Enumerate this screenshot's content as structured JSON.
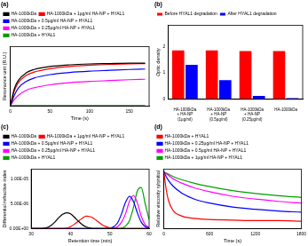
{
  "chart_data": [
    {
      "type": "line",
      "title": "(a)",
      "x_label": "Time (s)",
      "y_label": "Resonance unit (R.U.)",
      "x": [
        0,
        5,
        10,
        20,
        30,
        50,
        75,
        100,
        125,
        150,
        170
      ],
      "series": [
        {
          "name": "HA-1000kDa",
          "color": "#000000",
          "values": [
            0,
            40,
            60,
            78,
            86,
            93,
            97,
            99,
            100,
            101,
            101
          ]
        },
        {
          "name": "HA-1000kDa + 1µg/ml HA-NP + HYAL1",
          "color": "#ff0000",
          "values": [
            0,
            35,
            55,
            72,
            80,
            88,
            93,
            96,
            98,
            99,
            100
          ]
        },
        {
          "name": "HA-1000kDa + 0.5µg/ml HA-NP + HYAL1",
          "color": "#0000ff",
          "values": [
            0,
            25,
            42,
            58,
            66,
            74,
            79,
            82,
            84,
            86,
            87
          ]
        },
        {
          "name": "HA-1000kDa + 0.25µg/ml HA-NP + HYAL1",
          "color": "#ff00ff",
          "values": [
            0,
            15,
            25,
            37,
            43,
            50,
            55,
            58,
            60,
            62,
            63
          ]
        },
        {
          "name": "HA-1000kDa + HYAL1",
          "color": "#00a000",
          "values": [
            0,
            1,
            1,
            1,
            1,
            1,
            1,
            1,
            1,
            1,
            1
          ]
        }
      ],
      "xlim": [
        0,
        175
      ],
      "xticks": [
        0,
        50,
        100,
        150
      ],
      "ylim": [
        0,
        140
      ],
      "tick_labels": "x",
      "grid": false,
      "legend": "top"
    },
    {
      "type": "bar",
      "title": "(b)",
      "y_label": "Optic density",
      "categories": [
        "HA-1000kDa + HA-NP (1µg/ml)",
        "HA-1000kDa + HA-NP (0.5µg/ml)",
        "HA-1000kDa + HA-NP (0.25µg/ml)",
        "HA-1000kDa"
      ],
      "series": [
        {
          "name": "Before HYAL1 degradation",
          "color": "#ff0000",
          "values": [
            1.85,
            1.85,
            1.82,
            1.82
          ]
        },
        {
          "name": "After HYAL1 degradation",
          "color": "#0000ff",
          "values": [
            1.3,
            0.72,
            0.13,
            0.04
          ]
        }
      ],
      "ylim": [
        0,
        2.8
      ],
      "yticks": [
        0,
        1,
        2
      ],
      "grid": false,
      "legend": "top"
    },
    {
      "type": "line",
      "title": "(c)",
      "x_label": "Retention time (min)",
      "y_label": "Differential refractive index",
      "x": [
        30,
        31,
        32,
        33,
        34,
        35,
        36,
        37,
        38,
        39,
        40,
        41,
        42,
        43,
        44,
        45,
        46,
        47,
        48,
        49,
        50,
        51,
        52,
        53,
        54,
        55,
        56,
        57,
        58,
        59,
        60
      ],
      "series": [
        {
          "name": "HA-1000kDa",
          "color": "#000000",
          "values": [
            0,
            0,
            0,
            5e-08,
            2e-07,
            6e-07,
            1.3e-06,
            2.2e-06,
            2.9e-06,
            3.2e-06,
            3e-06,
            2.3e-06,
            1.5e-06,
            8e-07,
            3.5e-07,
            1e-07,
            0,
            0,
            0,
            0,
            0,
            0,
            0,
            0,
            0,
            0,
            0,
            0,
            0,
            0,
            0
          ]
        },
        {
          "name": "HA-1000kDa + 1µg/ml HA-NP + HYAL1",
          "color": "#ff0000",
          "values": [
            0,
            0,
            0,
            0,
            0,
            0,
            0,
            0,
            0,
            1e-07,
            4e-07,
            9e-07,
            1.5e-06,
            2.1e-06,
            2.5e-06,
            2.4e-06,
            2e-06,
            1.4e-06,
            8e-07,
            4e-07,
            1.5e-07,
            5e-08,
            0,
            0,
            0,
            0,
            0,
            0,
            0,
            0,
            0
          ]
        },
        {
          "name": "HA-1000kDa + 0.5µg/ml HA-NP + HYAL1",
          "color": "#0000ff",
          "values": [
            0,
            0,
            0,
            0,
            0,
            0,
            0,
            0,
            0,
            0,
            0,
            0,
            0,
            0,
            0,
            0,
            0,
            0,
            0,
            0,
            1e-07,
            4e-07,
            1.2e-06,
            3e-06,
            5.3e-06,
            6.5e-06,
            5.5e-06,
            3.2e-06,
            1.3e-06,
            4e-07,
            1e-07
          ]
        },
        {
          "name": "HA-1000kDa + 0.25µg/ml HA-NP + HYAL1",
          "color": "#ff00ff",
          "values": [
            0,
            0,
            0,
            0,
            0,
            0,
            0,
            0,
            0,
            0,
            0,
            0,
            0,
            0,
            0,
            0,
            0,
            0,
            0,
            0,
            0,
            1e-07,
            4e-07,
            1.3e-06,
            3e-06,
            5.5e-06,
            6.7e-06,
            5.2e-06,
            2.5e-06,
            8e-07,
            2e-07
          ]
        },
        {
          "name": "HA-1000kDa + HYAL1",
          "color": "#00a000",
          "values": [
            0,
            0,
            0,
            0,
            0,
            0,
            0,
            0,
            0,
            0,
            0,
            0,
            0,
            0,
            0,
            0,
            0,
            0,
            0,
            0,
            0,
            0,
            0,
            1e-07,
            5e-07,
            1.6e-06,
            4.2e-06,
            7.6e-06,
            8.3e-06,
            5e-06,
            1.8e-06
          ]
        }
      ],
      "xlim": [
        30,
        60
      ],
      "xticks": [
        30,
        40,
        50,
        60
      ],
      "ylim": [
        0,
        1.2e-05
      ],
      "yticks": [
        {
          "value": 0,
          "label": "0.00E+00"
        },
        {
          "value": 5e-06,
          "label": "5.00E-06"
        },
        {
          "value": 1e-05,
          "label": "1.00E-05"
        }
      ],
      "grid": false,
      "legend": "top"
    },
    {
      "type": "line",
      "title": "(d)",
      "x_label": "Time (s)",
      "y_label": "Relative viscosity η/ηinitial",
      "x": [
        0,
        30,
        60,
        120,
        240,
        400,
        600,
        900,
        1200,
        1500,
        1800
      ],
      "series": [
        {
          "name": "HA-1000kDa + HYAL1",
          "color": "#ff0000",
          "values": [
            1,
            0.7,
            0.5,
            0.32,
            0.22,
            0.18,
            0.16,
            0.15,
            0.14,
            0.14,
            0.13
          ]
        },
        {
          "name": "HA-1000kDa + 0.25µg/ml HA-NP + HYAL1",
          "color": "#0000ff",
          "values": [
            1,
            0.92,
            0.85,
            0.75,
            0.62,
            0.52,
            0.45,
            0.38,
            0.34,
            0.31,
            0.29
          ]
        },
        {
          "name": "HA-1000kDa + 0.5µg/ml HA-NP + HYAL1",
          "color": "#ff00ff",
          "values": [
            1,
            0.97,
            0.94,
            0.88,
            0.8,
            0.72,
            0.65,
            0.57,
            0.52,
            0.48,
            0.45
          ]
        },
        {
          "name": "HA-1000kDa + 1µg/ml HA-NP + HYAL1",
          "color": "#00a000",
          "values": [
            1,
            0.98,
            0.96,
            0.92,
            0.86,
            0.8,
            0.74,
            0.67,
            0.62,
            0.58,
            0.55
          ]
        }
      ],
      "xlim": [
        0,
        1800
      ],
      "xticks": [
        0,
        600,
        1200,
        1800
      ],
      "ylim": [
        0,
        1.05
      ],
      "tick_labels": "x",
      "grid": false,
      "legend": "top"
    }
  ]
}
